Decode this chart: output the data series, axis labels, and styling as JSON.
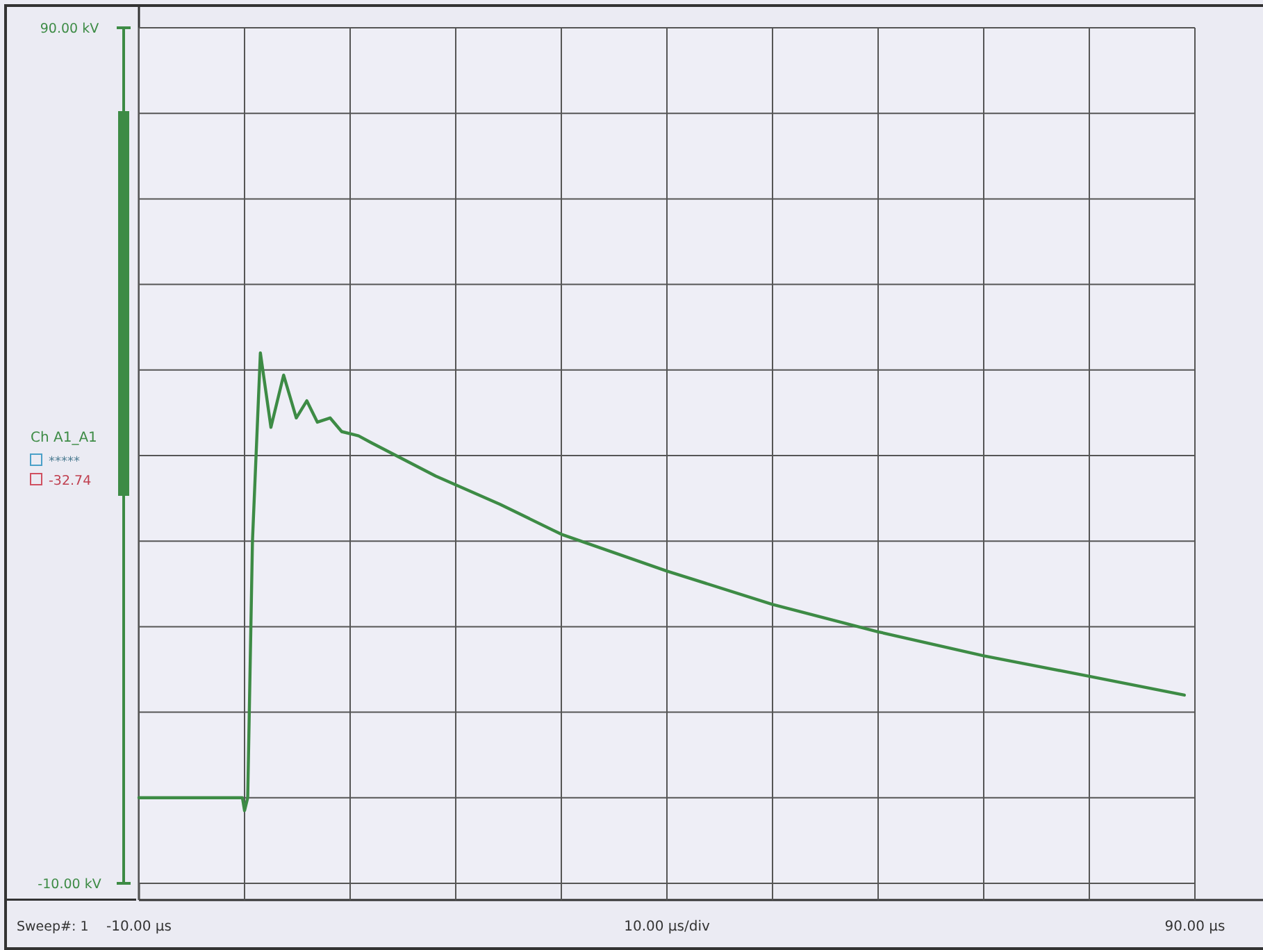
{
  "chart_data": {
    "type": "line",
    "xlabel": "10.00 µs/div",
    "x": [
      -10,
      -0.2,
      0,
      0.3,
      0.75,
      1.5,
      2.5,
      3.7,
      4.9,
      5.9,
      6.9,
      8.1,
      9.2,
      10.8,
      12,
      18.1,
      24.2,
      30,
      40,
      50,
      60,
      70,
      80,
      89
    ],
    "series": [
      {
        "name": "Ch A1_A1",
        "color": "#3d8b45",
        "values": [
          0,
          0,
          -1.5,
          0,
          30,
          52,
          43.3,
          49.4,
          44.4,
          46.4,
          43.9,
          44.4,
          42.8,
          42.3,
          41.5,
          37.6,
          34.3,
          30.8,
          26.5,
          22.6,
          19.4,
          16.6,
          14.2,
          12
        ]
      }
    ],
    "xlim": [
      -10,
      90
    ],
    "xticks": [
      {
        "value": -10,
        "label": "-10.00 µs"
      },
      {
        "value": 0,
        "label": null
      },
      {
        "value": 10,
        "label": null
      },
      {
        "value": 20,
        "label": null
      },
      {
        "value": 30,
        "label": null
      },
      {
        "value": 40,
        "label": null
      },
      {
        "value": 50,
        "label": null
      },
      {
        "value": 60,
        "label": null
      },
      {
        "value": 70,
        "label": null
      },
      {
        "value": 80,
        "label": null
      },
      {
        "value": 90,
        "label": "90.00 µs"
      }
    ],
    "ylim": [
      -10,
      90
    ],
    "yticks": [
      {
        "value": -10,
        "label": "-10.00 kV"
      },
      {
        "value": 0,
        "label": null
      },
      {
        "value": 10,
        "label": null
      },
      {
        "value": 20,
        "label": null
      },
      {
        "value": 30,
        "label": null
      },
      {
        "value": 40,
        "label": null
      },
      {
        "value": 50,
        "label": null
      },
      {
        "value": 60,
        "label": null
      },
      {
        "value": 70,
        "label": null
      },
      {
        "value": 80,
        "label": null
      },
      {
        "value": 90,
        "label": "90.00 kV"
      }
    ],
    "grid": true,
    "legend": "left",
    "marker": "none",
    "line_style": "solid",
    "annotations": [
      "*****",
      "-32.74",
      "Sweep#: 1"
    ]
  }
}
